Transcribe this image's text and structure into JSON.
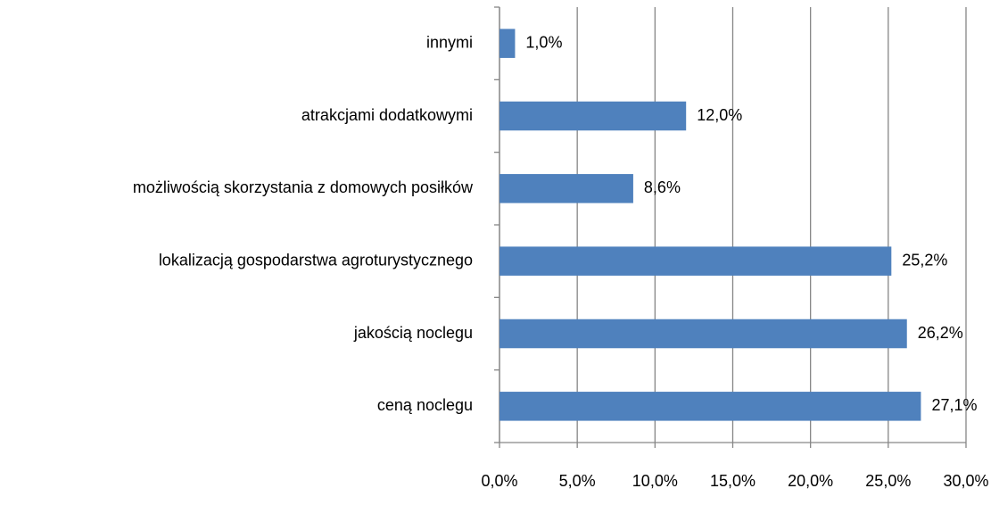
{
  "chart_data": {
    "type": "bar",
    "orientation": "horizontal",
    "categories": [
      "innymi",
      "atrakcjami dodatkowymi",
      "możliwością skorzystania z domowych posiłków",
      "lokalizacją gospodarstwa agroturystycznego",
      "jakością noclegu",
      "ceną noclegu"
    ],
    "values": [
      1.0,
      12.0,
      8.6,
      25.2,
      26.2,
      27.1
    ],
    "value_labels": [
      "1,0%",
      "12,0%",
      "8,6%",
      "25,2%",
      "26,2%",
      "27,1%"
    ],
    "color": "#4f81bd",
    "xlim": [
      0,
      30
    ],
    "xticks": [
      {
        "value": 0,
        "label": "0,0%"
      },
      {
        "value": 5,
        "label": "5,0%"
      },
      {
        "value": 10,
        "label": "10,0%"
      },
      {
        "value": 15,
        "label": "15,0%"
      },
      {
        "value": 20,
        "label": "20,0%"
      },
      {
        "value": 25,
        "label": "25,0%"
      },
      {
        "value": 30,
        "label": "30,0%"
      }
    ],
    "grid": true
  }
}
